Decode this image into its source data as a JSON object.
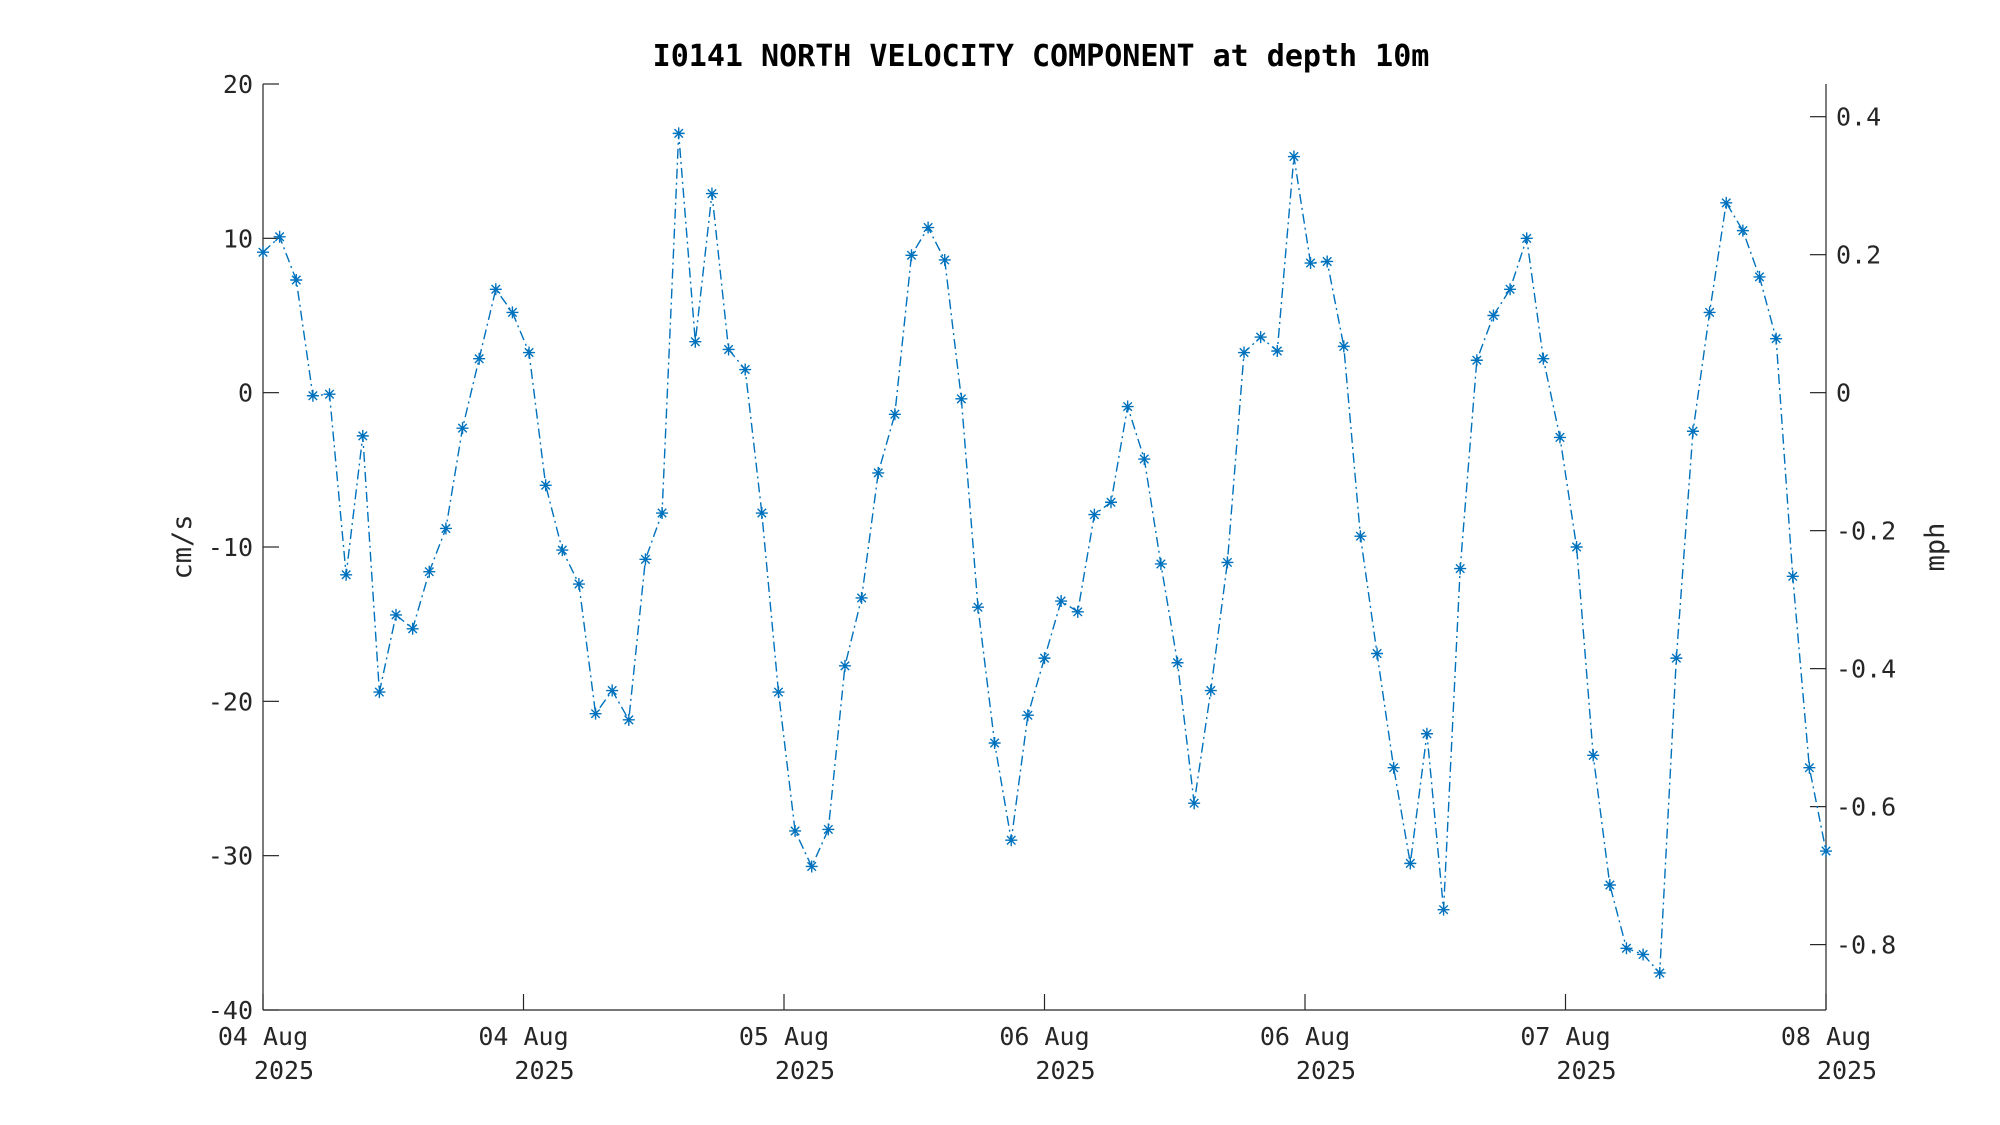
{
  "chart_data": {
    "type": "line",
    "title": "I0141 NORTH VELOCITY COMPONENT at depth 10m",
    "ylabel": "cm/s",
    "ylabel_right": "mph",
    "ylim": [
      -40,
      20
    ],
    "ylim_right": [
      -0.894775,
      0.447387
    ],
    "yticks": [
      -40,
      -30,
      -20,
      -10,
      0,
      10,
      20
    ],
    "yticks_right": [
      -0.8,
      -0.6,
      -0.4,
      -0.2,
      0,
      0.2,
      0.4
    ],
    "xlim": [
      0,
      6
    ],
    "xticks": [
      0,
      1,
      2,
      3,
      4,
      5,
      6
    ],
    "xtick_labels": [
      [
        "04 Aug",
        "2025"
      ],
      [
        "04 Aug",
        "2025"
      ],
      [
        "05 Aug",
        "2025"
      ],
      [
        "06 Aug",
        "2025"
      ],
      [
        "06 Aug",
        "2025"
      ],
      [
        "07 Aug",
        "2025"
      ],
      [
        "08 Aug",
        "2025"
      ]
    ],
    "grid": false,
    "color": "#0072BD",
    "marker": "asterisk",
    "line_style": "dash-dot",
    "series": [
      {
        "y": [
          9.1,
          10.1,
          7.3,
          -0.2,
          -0.1,
          -11.8,
          -2.8,
          -19.4,
          -14.4,
          -15.3,
          -11.6,
          -8.8,
          -2.3,
          2.2,
          6.7,
          5.2,
          2.6,
          -6.0,
          -10.2,
          -12.4,
          -20.8,
          -19.3,
          -21.2,
          -10.8,
          -7.8,
          16.8,
          3.3,
          12.9,
          2.8,
          1.5,
          -7.8,
          -19.4,
          -28.4,
          -30.7,
          -28.3,
          -17.7,
          -13.3,
          -5.2,
          -1.4,
          8.9,
          10.7,
          8.6,
          -0.4,
          -13.9,
          -22.7,
          -29.0,
          -20.9,
          -17.2,
          -13.5,
          -14.2,
          -7.9,
          -7.1,
          -0.9,
          -4.3,
          -11.1,
          -17.5,
          -26.6,
          -19.3,
          -11.0,
          2.6,
          3.6,
          2.7,
          15.3,
          8.4,
          8.5,
          3.0,
          -9.3,
          -16.9,
          -24.3,
          -30.5,
          -22.1,
          -33.5,
          -11.4,
          2.1,
          5.0,
          6.7,
          10.0,
          2.2,
          -2.9,
          -10.0,
          -23.5,
          -31.9,
          -36.0,
          -36.4,
          -37.6,
          -17.2,
          -2.5,
          5.2,
          12.3,
          10.5,
          7.5,
          3.5,
          -11.9,
          -24.3,
          -29.7
        ]
      }
    ]
  }
}
